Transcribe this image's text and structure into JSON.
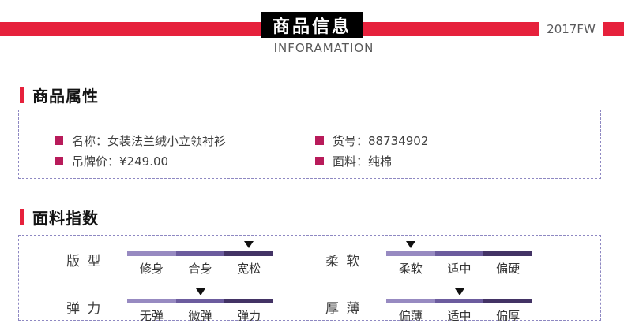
{
  "header": {
    "title": "商品信息",
    "subtitle": "INFORAMATION",
    "season": "2017FW"
  },
  "attributes": {
    "heading": "商品属性",
    "left_items": [
      {
        "label": "名称：",
        "value": "女装法兰绒小立领衬衫"
      },
      {
        "label": "吊牌价：",
        "value": "¥249.00"
      }
    ],
    "right_items": [
      {
        "label": "货号：",
        "value": "88734902"
      },
      {
        "label": "面料：",
        "value": "纯棉"
      }
    ]
  },
  "fabric_index": {
    "heading": "面料指数",
    "sliders": [
      {
        "name": "版 型",
        "levels": [
          "修身",
          "合身",
          "宽松"
        ],
        "active": 3
      },
      {
        "name": "柔 软",
        "levels": [
          "柔软",
          "适中",
          "偏硬"
        ],
        "active": 1
      },
      {
        "name": "弹 力",
        "levels": [
          "无弹",
          "微弹",
          "弹力"
        ],
        "active": 2
      },
      {
        "name": "厚 薄",
        "levels": [
          "偏薄",
          "适中",
          "偏厚"
        ],
        "active": 2
      }
    ]
  },
  "colors": {
    "accent_red": "#e6213c",
    "bullet_magenta": "#b81b5a",
    "dashed_border": "#8e88c2",
    "segment_light": "#978ac1",
    "segment_medium": "#6c5c9e",
    "segment_dark": "#433365",
    "title_box_bg": "#000000",
    "title_text": "#ffffff"
  }
}
